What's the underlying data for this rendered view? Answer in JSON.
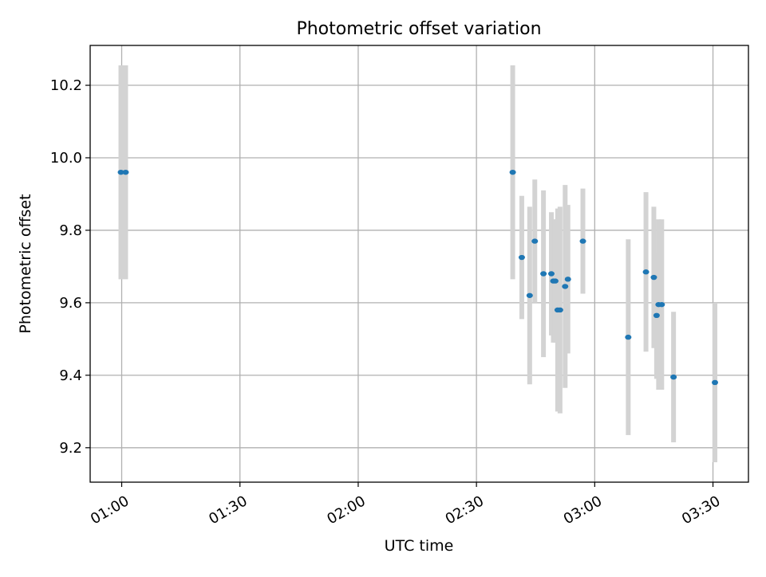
{
  "chart_data": {
    "type": "scatter",
    "title": "Photometric offset variation",
    "xlabel": "UTC time",
    "ylabel": "Photometric offset",
    "xlim": [
      "00:52",
      "03:39"
    ],
    "ylim": [
      9.105,
      10.31
    ],
    "x_ticks": [
      "01:00",
      "01:30",
      "02:00",
      "02:30",
      "03:00",
      "03:30"
    ],
    "y_ticks": [
      9.2,
      9.4,
      9.6,
      9.8,
      10.0,
      10.2
    ],
    "grid": true,
    "colors": {
      "point": "#1f77b4",
      "errorbar": "#d3d3d3",
      "grid": "#b0b0b0"
    },
    "series": [
      {
        "x": [
          "00:59.8",
          "01:01.0",
          "02:39.2",
          "02:41.5",
          "02:43.5",
          "02:44.8",
          "02:47.0",
          "02:49.0",
          "02:49.5",
          "02:50.0",
          "02:50.6",
          "02:51.2",
          "02:52.5",
          "02:53.2",
          "02:57.0",
          "03:08.5",
          "03:13.0",
          "03:15.0",
          "03:15.7",
          "03:16.2",
          "03:17.0",
          "03:20.0",
          "03:30.5"
        ],
        "y": [
          9.96,
          9.96,
          9.96,
          9.725,
          9.62,
          9.77,
          9.68,
          9.68,
          9.66,
          9.66,
          9.58,
          9.58,
          9.645,
          9.665,
          9.77,
          9.505,
          9.685,
          9.67,
          9.565,
          9.595,
          9.595,
          9.395,
          9.38
        ],
        "err": [
          0.295,
          0.295,
          0.295,
          0.17,
          0.245,
          0.17,
          0.23,
          0.17,
          0.17,
          0.17,
          0.28,
          0.285,
          0.28,
          0.205,
          0.145,
          0.27,
          0.22,
          0.195,
          0.175,
          0.235,
          0.235,
          0.18,
          0.22
        ]
      }
    ]
  }
}
